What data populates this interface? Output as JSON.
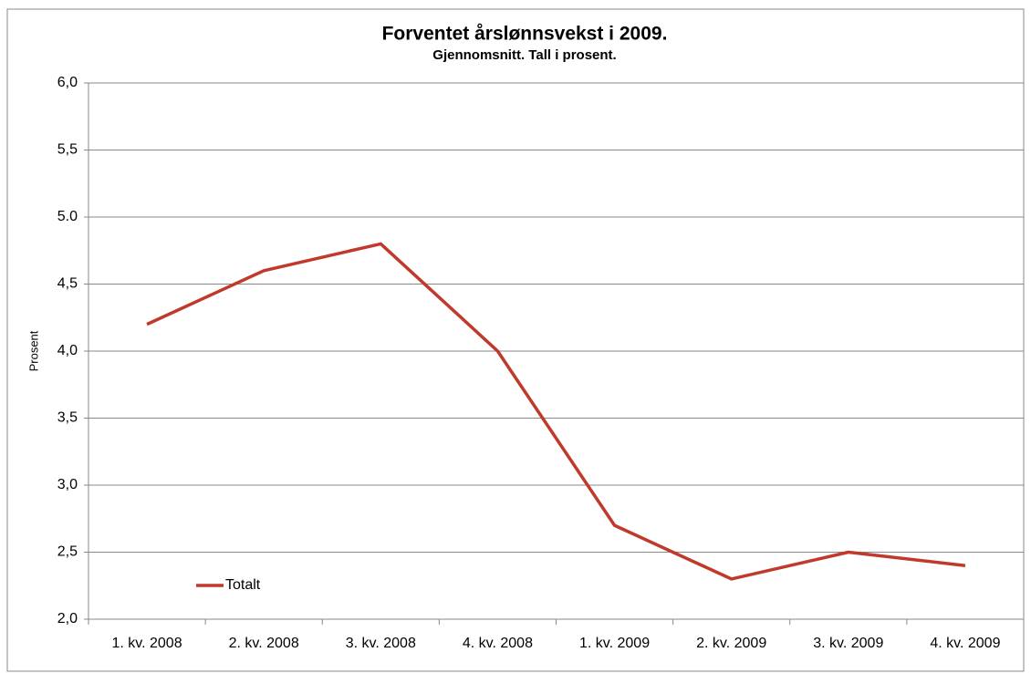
{
  "chart_data": {
    "type": "line",
    "title": "Forventet årslønnsvekst i 2009.",
    "subtitle": "Gjennomsnitt. Tall i prosent.",
    "y_label": "Prosent",
    "categories": [
      "1. kv. 2008",
      "2. kv. 2008",
      "3. kv. 2008",
      "4. kv. 2008",
      "1. kv. 2009",
      "2. kv. 2009",
      "3. kv. 2009",
      "4. kv. 2009"
    ],
    "series": [
      {
        "name": "Totalt",
        "color": "#c0392b",
        "values": [
          4.2,
          4.6,
          4.8,
          4.0,
          2.7,
          2.3,
          2.5,
          2.4
        ]
      }
    ],
    "ylim": [
      2,
      6
    ],
    "yticks": [
      {
        "value": 2,
        "label": "2,0"
      },
      {
        "value": 2.5,
        "label": "2,5"
      },
      {
        "value": 3,
        "label": "3,0"
      },
      {
        "value": 3.5,
        "label": "3,5"
      },
      {
        "value": 4,
        "label": "4,0"
      },
      {
        "value": 4.5,
        "label": "4,5"
      },
      {
        "value": 5,
        "label": "5.0"
      },
      {
        "value": 5.5,
        "label": "5,5"
      },
      {
        "value": 6,
        "label": "6,0"
      }
    ],
    "grid": true,
    "legend": "bottom-left"
  }
}
